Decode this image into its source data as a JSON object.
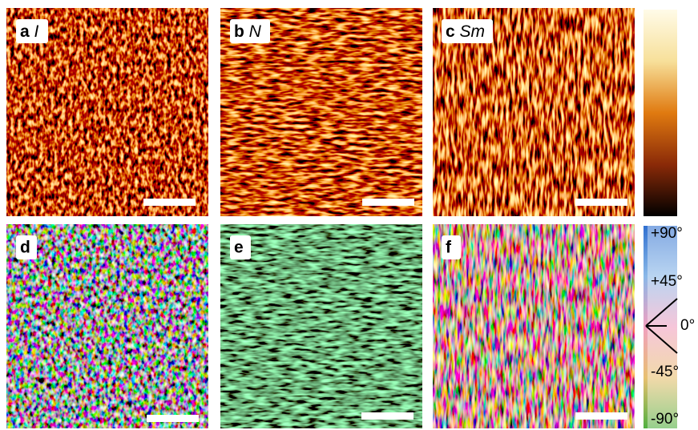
{
  "panels": [
    {
      "letter": "a",
      "phase": "I"
    },
    {
      "letter": "b",
      "phase": "N"
    },
    {
      "letter": "c",
      "phase": "Sm"
    },
    {
      "letter": "d"
    },
    {
      "letter": "e"
    },
    {
      "letter": "f"
    }
  ],
  "colorbar": {
    "labels": [
      "+90°",
      "+45°",
      "0°",
      "-45°",
      "-90°"
    ]
  }
}
